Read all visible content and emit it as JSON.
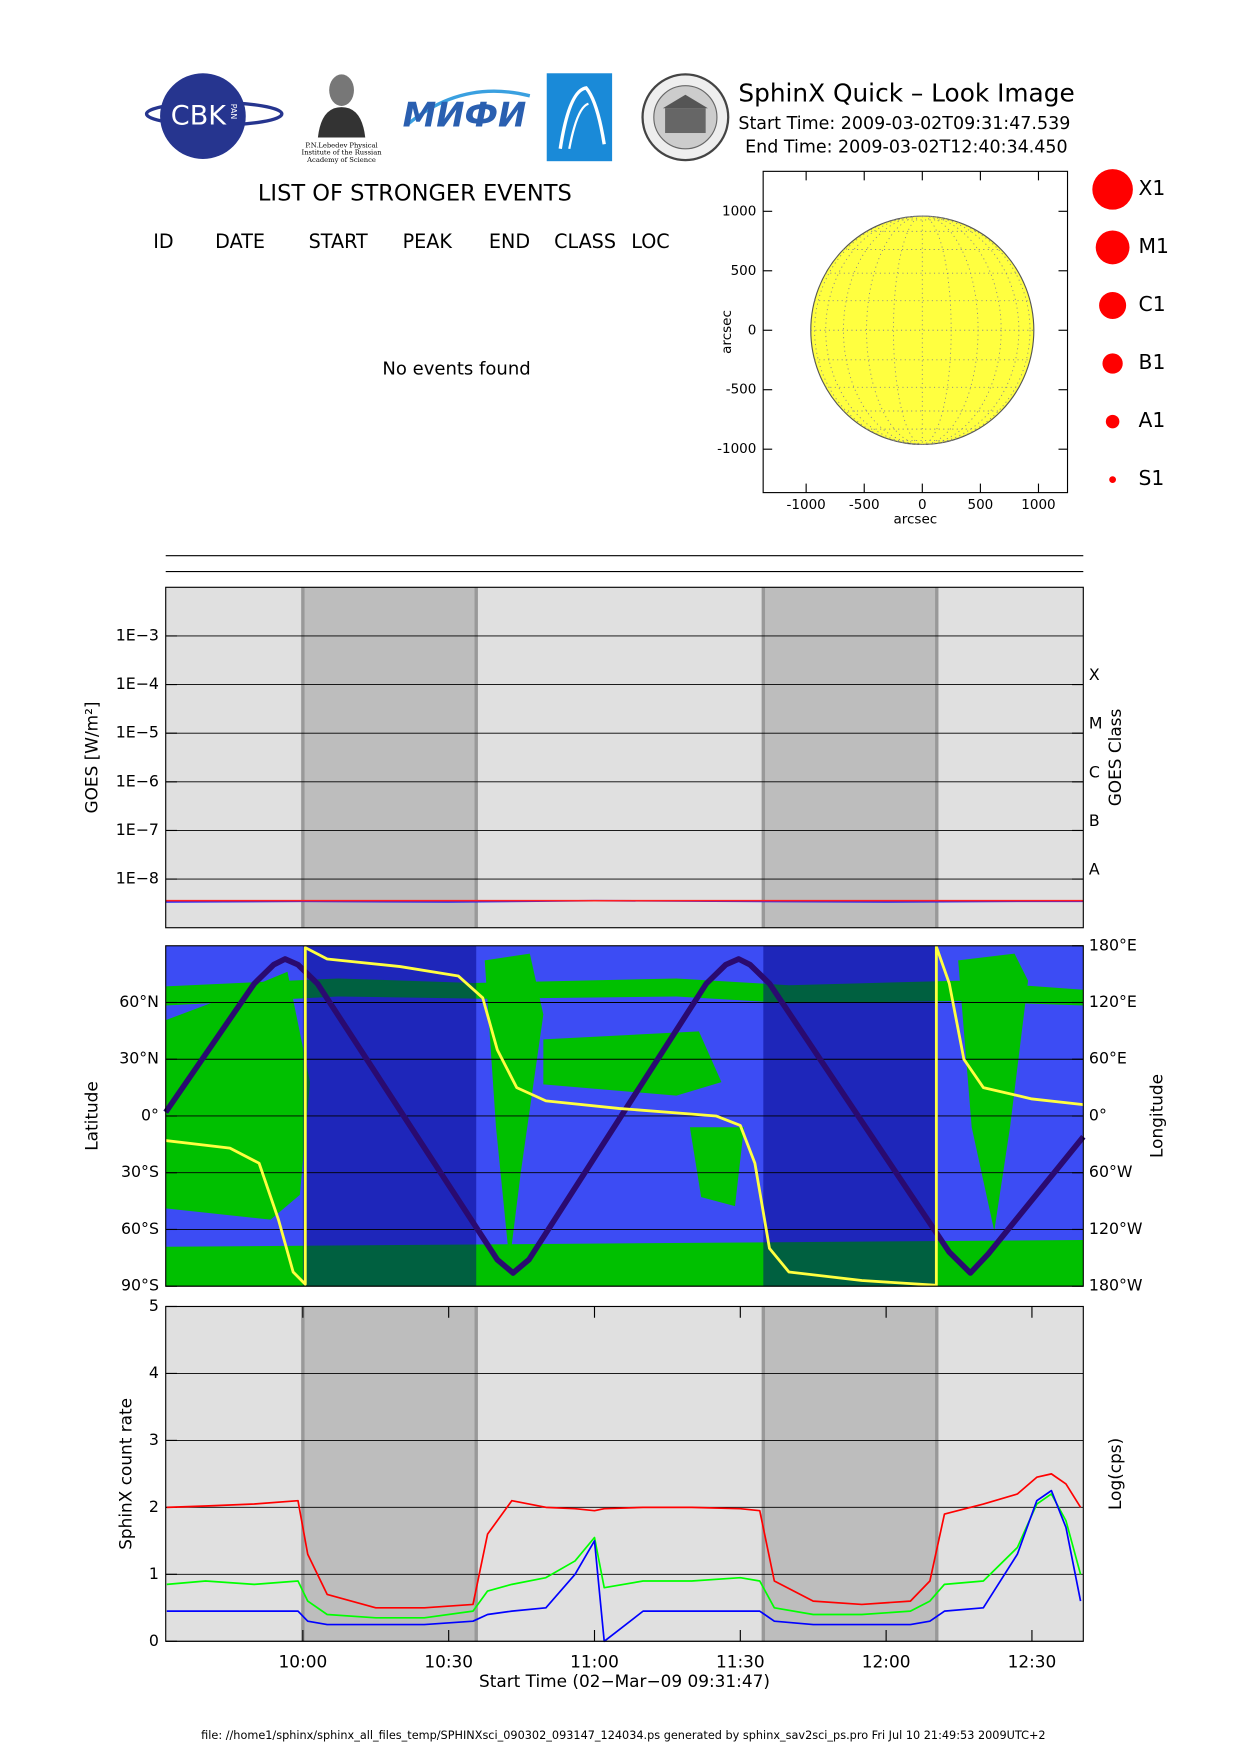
{
  "header": {
    "title": "SphinX Quick – Look Image",
    "start_time": "Start Time: 2009-03-02T09:31:47.539",
    "end_time": "End Time: 2009-03-02T12:40:34.450"
  },
  "logos": {
    "cbk": "CBK",
    "pan": "PAN",
    "lebedev": [
      "P.N.Lebedev Physical",
      "Institute of the Russian",
      "Academy of Science"
    ],
    "mifi": "МИФИ"
  },
  "event_list": {
    "title": "LIST OF STRONGER EVENTS",
    "columns": [
      "ID",
      "DATE",
      "START",
      "PEAK",
      "END",
      "CLASS",
      "LOC"
    ],
    "message": "No events found"
  },
  "flare_classes": [
    "X1",
    "M1",
    "C1",
    "B1",
    "A1",
    "S1"
  ],
  "shaded_intervals": [
    [
      "10:00:00",
      "10:35:40"
    ],
    [
      "11:34:44",
      "12:10:25"
    ]
  ],
  "footer": "file: //home1/sphinx/sphinx_all_files_temp/SPHINXsci_090302_093147_124034.ps generated by sphinx_sav2sci_ps.pro Fri Jul 10 21:49:53 2009UTC+2",
  "chart_data": [
    {
      "type": "map",
      "xlabel": "arcsec",
      "ylabel": "arcsec",
      "xlim": [
        -1370,
        1250
      ],
      "ylim": [
        -1365,
        1336
      ],
      "xticks": [
        -1000,
        -500,
        0,
        500,
        1000
      ],
      "yticks": [
        -1000,
        -500,
        0,
        500,
        1000
      ],
      "disk_radius": 960,
      "disk_color": "#ffff40"
    },
    {
      "type": "line",
      "log": true,
      "ylabel": "GOES [W/m²]",
      "y2label": "GOES Class",
      "xlim": [
        "09:31:47",
        "12:40:34"
      ],
      "ylim": [
        1e-09,
        0.01
      ],
      "yticks": [
        {
          "value": 1e-08,
          "label": "1E−8"
        },
        {
          "value": 1e-07,
          "label": "1E−7"
        },
        {
          "value": 1e-06,
          "label": "1E−6"
        },
        {
          "value": 1e-05,
          "label": "1E−5"
        },
        {
          "value": 0.0001,
          "label": "1E−4"
        },
        {
          "value": 0.001,
          "label": "1E−3"
        }
      ],
      "y2ticks": [
        {
          "value": 1e-08,
          "label": "A"
        },
        {
          "value": 1e-07,
          "label": "B"
        },
        {
          "value": 1e-06,
          "label": "C"
        },
        {
          "value": 1e-05,
          "label": "M"
        },
        {
          "value": 0.0001,
          "label": "X"
        }
      ],
      "grid": true,
      "background": "#e0e0e0",
      "shade_color": "#bdbdbd",
      "x": [
        "09:31:47",
        "10:00:00",
        "10:30:00",
        "11:00:00",
        "11:30:00",
        "12:00:00",
        "12:30:00",
        "12:40:34"
      ],
      "series": [
        {
          "color": "#2020ff",
          "values": [
            3.4e-09,
            3.5e-09,
            3.4e-09,
            3.6e-09,
            3.5e-09,
            3.4e-09,
            3.5e-09,
            3.5e-09
          ]
        },
        {
          "color": "#ff2020",
          "values": [
            3.6e-09,
            3.6e-09,
            3.6e-09,
            3.6e-09,
            3.6e-09,
            3.6e-09,
            3.6e-09,
            3.6e-09
          ]
        }
      ]
    },
    {
      "type": "line",
      "ylabel": "Latitude",
      "y2label": "Longitude",
      "xlim": [
        "09:31:47",
        "12:40:34"
      ],
      "ylim": [
        -90,
        90
      ],
      "y2lim": [
        -180,
        180
      ],
      "yticks": [
        {
          "value": -90,
          "label": "90°S"
        },
        {
          "value": -60,
          "label": "60°S"
        },
        {
          "value": -30,
          "label": "30°S"
        },
        {
          "value": 0,
          "label": "0°"
        },
        {
          "value": 30,
          "label": "30°N"
        },
        {
          "value": 60,
          "label": "60°N"
        }
      ],
      "y2ticks": [
        {
          "value": -180,
          "label": "180°W"
        },
        {
          "value": -120,
          "label": "120°W"
        },
        {
          "value": -60,
          "label": "60°W"
        },
        {
          "value": 0,
          "label": "0°"
        },
        {
          "value": 60,
          "label": "60°E"
        },
        {
          "value": 120,
          "label": "120°E"
        },
        {
          "value": 180,
          "label": "180°E"
        }
      ],
      "grid": true,
      "background": "#3c4cf4",
      "shade_color": "#000080",
      "land_color": "#00c000",
      "series": [
        {
          "color": "#2a0a70",
          "x": [
            "09:31:47",
            "09:50:00",
            "09:54:00",
            "09:56:20",
            "09:59:00",
            "10:03:00",
            "10:40:00",
            "10:43:15",
            "10:46:30",
            "11:23:00",
            "11:27:00",
            "11:29:40",
            "11:32:00",
            "11:36:00",
            "12:13:00",
            "12:17:20",
            "12:21:00",
            "12:40:34"
          ],
          "values": [
            2,
            70,
            80,
            83,
            80,
            70,
            -76,
            -83,
            -76,
            70,
            80,
            83,
            80,
            70,
            -72,
            -83,
            -73,
            -11
          ]
        },
        {
          "color": "#ffff40",
          "axis": "y2",
          "x": [
            "09:31:47",
            "09:45:00",
            "09:51:00",
            "09:55:00",
            "09:58:00",
            "10:00:30",
            "10:00:30",
            "10:05:00",
            "10:20:00",
            "10:32:00",
            "10:37:00",
            "10:40:00",
            "10:44:00",
            "10:50:00",
            "11:05:00",
            "11:25:00",
            "11:30:00",
            "11:33:00",
            "11:36:00",
            "11:40:00",
            "11:55:00",
            "12:10:20",
            "12:10:20",
            "12:13:00",
            "12:16:00",
            "12:20:00",
            "12:30:00",
            "12:40:34"
          ],
          "values": [
            -26,
            -34,
            -50,
            -110,
            -165,
            -178,
            178,
            166,
            158,
            148,
            125,
            70,
            30,
            16,
            8,
            0,
            -10,
            -50,
            -140,
            -165,
            -174,
            -179,
            179,
            140,
            60,
            30,
            18,
            12
          ]
        }
      ]
    },
    {
      "type": "line",
      "ylabel": "SphinX count rate",
      "y2label": "Log(cps)",
      "xlabel": "Start Time (02−Mar−09 09:31:47)",
      "xlim": [
        "09:31:47",
        "12:40:34"
      ],
      "ylim": [
        0,
        5
      ],
      "yticks": [
        0,
        1,
        2,
        3,
        4,
        5
      ],
      "xticks": [
        "10:00",
        "10:30",
        "11:00",
        "11:30",
        "12:00",
        "12:30"
      ],
      "grid": true,
      "background": "#e0e0e0",
      "shade_color": "#bdbdbd",
      "x": [
        "09:32",
        "09:40",
        "09:50",
        "09:59",
        "10:01",
        "10:05",
        "10:15",
        "10:25",
        "10:35",
        "10:38",
        "10:43",
        "10:50",
        "10:56",
        "11:00",
        "11:02",
        "11:10",
        "11:20",
        "11:30",
        "11:34",
        "11:37",
        "11:45",
        "11:55",
        "12:05",
        "12:09",
        "12:12",
        "12:20",
        "12:27",
        "12:31",
        "12:34",
        "12:37",
        "12:40"
      ],
      "series": [
        {
          "color": "#00ff00",
          "values": [
            0.85,
            0.9,
            0.85,
            0.9,
            0.6,
            0.4,
            0.35,
            0.35,
            0.45,
            0.75,
            0.85,
            0.95,
            1.2,
            1.55,
            0.8,
            0.9,
            0.9,
            0.95,
            0.9,
            0.5,
            0.4,
            0.4,
            0.45,
            0.6,
            0.85,
            0.9,
            1.4,
            2.05,
            2.2,
            1.8,
            1.0
          ]
        },
        {
          "color": "#0000ff",
          "values": [
            0.45,
            0.45,
            0.45,
            0.45,
            0.3,
            0.25,
            0.25,
            0.25,
            0.3,
            0.4,
            0.45,
            0.5,
            1.0,
            1.5,
            0.0,
            0.45,
            0.45,
            0.45,
            0.45,
            0.3,
            0.25,
            0.25,
            0.25,
            0.3,
            0.45,
            0.5,
            1.3,
            2.1,
            2.25,
            1.7,
            0.6
          ]
        },
        {
          "color": "#ff0000",
          "values": [
            2.0,
            2.02,
            2.05,
            2.1,
            1.3,
            0.7,
            0.5,
            0.5,
            0.55,
            1.6,
            2.1,
            2.0,
            1.98,
            1.95,
            1.98,
            2.0,
            2.0,
            1.98,
            1.95,
            0.9,
            0.6,
            0.55,
            0.6,
            0.9,
            1.9,
            2.05,
            2.2,
            2.45,
            2.5,
            2.35,
            2.0
          ]
        }
      ]
    }
  ]
}
